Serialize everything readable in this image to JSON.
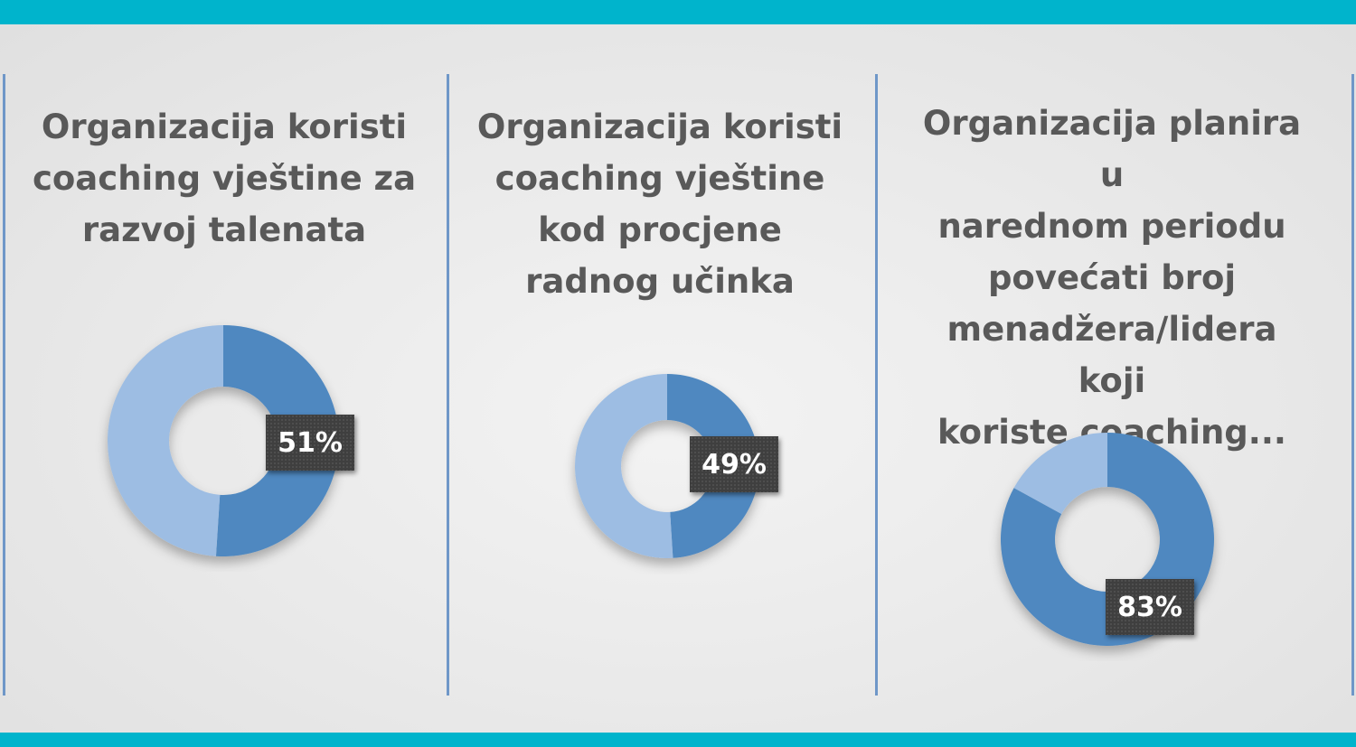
{
  "theme": {
    "band_color": "#00b4cc",
    "divider_color": "#6f97c8",
    "series_primary": "#4f88c0",
    "series_secondary": "#9dbde3",
    "title_color": "#595959",
    "label_bg": "#3f3f3f"
  },
  "chart_data": [
    {
      "type": "pie",
      "title": "Organizacija koristi\ncoaching vještine za\nrazvoj talenata",
      "slices": [
        {
          "value": 51,
          "label": "51%"
        },
        {
          "value": 49,
          "label": ""
        }
      ]
    },
    {
      "type": "pie",
      "title": "Organizacija koristi\ncoaching vještine\nkod procjene\nradnog učinka",
      "slices": [
        {
          "value": 49,
          "label": "49%"
        },
        {
          "value": 51,
          "label": ""
        }
      ]
    },
    {
      "type": "pie",
      "title": "Organizacija planira u\nnarednom periodu\npovećati broj\nmenadžera/lidera koji\nkoriste coaching...",
      "slices": [
        {
          "value": 83,
          "label": "83%"
        },
        {
          "value": 17,
          "label": ""
        }
      ]
    }
  ]
}
